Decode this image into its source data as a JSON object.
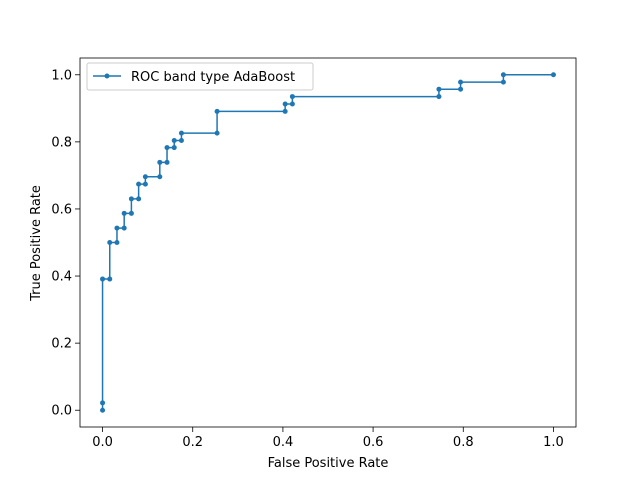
{
  "chart_data": {
    "type": "line",
    "title": "",
    "xlabel": "False Positive Rate",
    "ylabel": "True Positive Rate",
    "xlim": [
      -0.05,
      1.05
    ],
    "ylim": [
      -0.05,
      1.05
    ],
    "xticks": [
      "0.0",
      "0.2",
      "0.4",
      "0.6",
      "0.8",
      "1.0"
    ],
    "yticks": [
      "0.0",
      "0.2",
      "0.4",
      "0.6",
      "0.8",
      "1.0"
    ],
    "grid": false,
    "legend_position": "upper-left",
    "series": [
      {
        "name": "ROC band type AdaBoost",
        "color": "#1f77b4",
        "marker": "circle",
        "x": [
          0.0,
          0.0,
          0.0,
          0.016,
          0.016,
          0.032,
          0.032,
          0.048,
          0.048,
          0.064,
          0.064,
          0.08,
          0.08,
          0.095,
          0.095,
          0.127,
          0.127,
          0.143,
          0.143,
          0.159,
          0.159,
          0.175,
          0.175,
          0.254,
          0.254,
          0.405,
          0.405,
          0.421,
          0.421,
          0.746,
          0.746,
          0.794,
          0.794,
          0.889,
          0.889,
          1.0
        ],
        "y": [
          0.0,
          0.022,
          0.391,
          0.391,
          0.5,
          0.5,
          0.543,
          0.543,
          0.587,
          0.587,
          0.63,
          0.63,
          0.674,
          0.674,
          0.696,
          0.696,
          0.739,
          0.739,
          0.783,
          0.783,
          0.804,
          0.804,
          0.826,
          0.826,
          0.891,
          0.891,
          0.913,
          0.913,
          0.935,
          0.935,
          0.957,
          0.957,
          0.978,
          0.978,
          1.0,
          1.0
        ]
      }
    ]
  }
}
